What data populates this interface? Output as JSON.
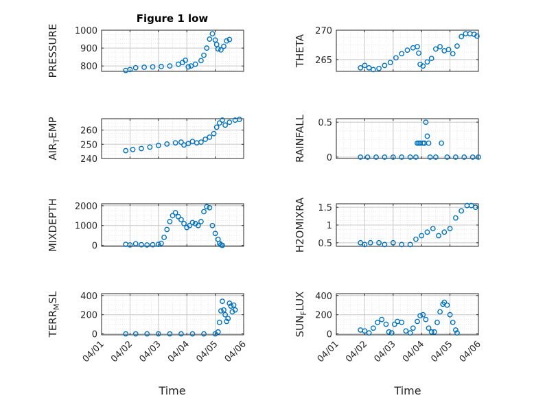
{
  "figure": {
    "title": "Figure 1 low",
    "xlabel": "Time"
  },
  "colors": {
    "marker": "#0072bd",
    "axis": "#262626",
    "grid": "#c8c8c8",
    "minor_grid": "#e2e2e2"
  },
  "chart_data": [
    {
      "id": "pressure",
      "type": "scatter",
      "ylabel": "PRESSURE",
      "ylim": [
        770,
        1000
      ],
      "yticks": [
        800,
        900,
        1000
      ],
      "xlim": [
        1,
        6
      ],
      "xticks": [
        "04/01",
        "04/02",
        "04/03",
        "04/04",
        "04/05",
        "04/06"
      ],
      "xticks_shown": false,
      "points": [
        [
          1.85,
          775
        ],
        [
          2.0,
          780
        ],
        [
          2.2,
          790
        ],
        [
          2.5,
          793
        ],
        [
          2.8,
          795
        ],
        [
          3.1,
          797
        ],
        [
          3.4,
          800
        ],
        [
          3.7,
          810
        ],
        [
          3.85,
          820
        ],
        [
          3.95,
          832
        ],
        [
          4.05,
          795
        ],
        [
          4.15,
          800
        ],
        [
          4.3,
          810
        ],
        [
          4.5,
          830
        ],
        [
          4.6,
          860
        ],
        [
          4.7,
          900
        ],
        [
          4.8,
          950
        ],
        [
          4.9,
          980
        ],
        [
          5.0,
          945
        ],
        [
          5.05,
          920
        ],
        [
          5.1,
          895
        ],
        [
          5.2,
          890
        ],
        [
          5.3,
          910
        ],
        [
          5.4,
          940
        ],
        [
          5.5,
          948
        ]
      ]
    },
    {
      "id": "theta",
      "type": "scatter",
      "ylabel": "THETA",
      "ylim": [
        263,
        270
      ],
      "yticks": [
        265,
        270
      ],
      "xlim": [
        1,
        6
      ],
      "xticks": [
        "04/01",
        "04/02",
        "04/03",
        "04/04",
        "04/05",
        "04/06"
      ],
      "xticks_shown": false,
      "points": [
        [
          1.85,
          263.6
        ],
        [
          2.0,
          264.0
        ],
        [
          2.15,
          263.6
        ],
        [
          2.3,
          263.3
        ],
        [
          2.5,
          263.5
        ],
        [
          2.7,
          264.0
        ],
        [
          2.9,
          264.5
        ],
        [
          3.1,
          265.3
        ],
        [
          3.3,
          266.0
        ],
        [
          3.5,
          266.6
        ],
        [
          3.7,
          267.0
        ],
        [
          3.85,
          267.2
        ],
        [
          3.9,
          266.1
        ],
        [
          3.95,
          264.2
        ],
        [
          4.05,
          263.9
        ],
        [
          4.2,
          264.6
        ],
        [
          4.35,
          265.2
        ],
        [
          4.5,
          266.8
        ],
        [
          4.65,
          267.2
        ],
        [
          4.8,
          266.5
        ],
        [
          4.95,
          266.7
        ],
        [
          5.1,
          266.0
        ],
        [
          5.25,
          267.3
        ],
        [
          5.4,
          268.9
        ],
        [
          5.55,
          269.4
        ],
        [
          5.7,
          269.4
        ],
        [
          5.85,
          269.3
        ],
        [
          5.95,
          269.0
        ]
      ]
    },
    {
      "id": "air_temp",
      "type": "scatter",
      "ylabel": "AIR_TEMP",
      "ylabel_main": "AIR",
      "ylabel_sub": "T",
      "ylabel_rest": "EMP",
      "ylim": [
        240,
        268
      ],
      "yticks": [
        240,
        250,
        260
      ],
      "xlim": [
        1,
        6
      ],
      "xticks": [
        "04/01",
        "04/02",
        "04/03",
        "04/04",
        "04/05",
        "04/06"
      ],
      "xticks_shown": false,
      "points": [
        [
          1.85,
          245.5
        ],
        [
          2.1,
          246.3
        ],
        [
          2.4,
          247.0
        ],
        [
          2.7,
          248.0
        ],
        [
          3.0,
          249.2
        ],
        [
          3.3,
          250.2
        ],
        [
          3.6,
          251.0
        ],
        [
          3.8,
          251.5
        ],
        [
          3.9,
          249.5
        ],
        [
          4.05,
          250.5
        ],
        [
          4.2,
          252.0
        ],
        [
          4.35,
          251.0
        ],
        [
          4.5,
          251.5
        ],
        [
          4.65,
          253.5
        ],
        [
          4.8,
          255.0
        ],
        [
          4.95,
          257.5
        ],
        [
          5.05,
          262.0
        ],
        [
          5.15,
          265.0
        ],
        [
          5.25,
          267.0
        ],
        [
          5.35,
          263.5
        ],
        [
          5.5,
          265.5
        ],
        [
          5.7,
          267.0
        ],
        [
          5.85,
          267.5
        ]
      ]
    },
    {
      "id": "rainfall",
      "type": "scatter",
      "ylabel": "RAINFALL",
      "ylim": [
        -0.02,
        0.55
      ],
      "yticks": [
        0,
        0.5
      ],
      "xlim": [
        1,
        6
      ],
      "xticks": [
        "04/01",
        "04/02",
        "04/03",
        "04/04",
        "04/05",
        "04/06"
      ],
      "xticks_shown": false,
      "points": [
        [
          1.85,
          0
        ],
        [
          2.1,
          0
        ],
        [
          2.4,
          0
        ],
        [
          2.7,
          0
        ],
        [
          3.0,
          0
        ],
        [
          3.3,
          0
        ],
        [
          3.6,
          0
        ],
        [
          3.8,
          0
        ],
        [
          3.85,
          0.2
        ],
        [
          3.9,
          0.2
        ],
        [
          3.95,
          0.2
        ],
        [
          4.05,
          0.2
        ],
        [
          4.1,
          0.2
        ],
        [
          4.15,
          0.5
        ],
        [
          4.2,
          0.3
        ],
        [
          4.25,
          0.2
        ],
        [
          4.3,
          0
        ],
        [
          4.5,
          0
        ],
        [
          4.7,
          0.2
        ],
        [
          4.9,
          0
        ],
        [
          5.2,
          0
        ],
        [
          5.5,
          0
        ],
        [
          5.8,
          0
        ],
        [
          6.0,
          0
        ]
      ]
    },
    {
      "id": "mixdepth",
      "type": "scatter",
      "ylabel": "MIXDEPTH",
      "ylim": [
        -50,
        2100
      ],
      "yticks": [
        0,
        1000,
        2000
      ],
      "xlim": [
        1,
        6
      ],
      "xticks": [
        "04/01",
        "04/02",
        "04/03",
        "04/04",
        "04/05",
        "04/06"
      ],
      "xticks_shown": false,
      "points": [
        [
          1.85,
          50
        ],
        [
          2.0,
          20
        ],
        [
          2.2,
          80
        ],
        [
          2.4,
          30
        ],
        [
          2.6,
          20
        ],
        [
          2.8,
          30
        ],
        [
          3.0,
          50
        ],
        [
          3.1,
          100
        ],
        [
          3.2,
          400
        ],
        [
          3.3,
          800
        ],
        [
          3.4,
          1200
        ],
        [
          3.5,
          1500
        ],
        [
          3.6,
          1650
        ],
        [
          3.7,
          1450
        ],
        [
          3.8,
          1300
        ],
        [
          3.9,
          1100
        ],
        [
          4.0,
          900
        ],
        [
          4.1,
          1000
        ],
        [
          4.2,
          1150
        ],
        [
          4.3,
          1100
        ],
        [
          4.4,
          1000
        ],
        [
          4.5,
          1200
        ],
        [
          4.6,
          1700
        ],
        [
          4.7,
          1950
        ],
        [
          4.8,
          1900
        ],
        [
          4.9,
          1000
        ],
        [
          5.0,
          600
        ],
        [
          5.1,
          300
        ],
        [
          5.15,
          100
        ],
        [
          5.2,
          30
        ],
        [
          5.25,
          0
        ]
      ]
    },
    {
      "id": "h2omixra",
      "type": "scatter",
      "ylabel": "H2OMIXRA",
      "ylim": [
        0.4,
        1.6
      ],
      "yticks": [
        0.5,
        1,
        1.5
      ],
      "xlim": [
        1,
        6
      ],
      "xticks": [
        "04/01",
        "04/02",
        "04/03",
        "04/04",
        "04/05",
        "04/06"
      ],
      "xticks_shown": false,
      "points": [
        [
          1.85,
          0.5
        ],
        [
          2.0,
          0.45
        ],
        [
          2.2,
          0.5
        ],
        [
          2.5,
          0.5
        ],
        [
          2.7,
          0.45
        ],
        [
          3.0,
          0.5
        ],
        [
          3.3,
          0.45
        ],
        [
          3.6,
          0.45
        ],
        [
          3.8,
          0.6
        ],
        [
          4.0,
          0.7
        ],
        [
          4.2,
          0.8
        ],
        [
          4.4,
          0.9
        ],
        [
          4.6,
          0.7
        ],
        [
          4.8,
          0.8
        ],
        [
          5.0,
          0.9
        ],
        [
          5.2,
          1.2
        ],
        [
          5.4,
          1.4
        ],
        [
          5.6,
          1.55
        ],
        [
          5.75,
          1.55
        ],
        [
          5.9,
          1.5
        ]
      ]
    },
    {
      "id": "terr_msl",
      "type": "scatter",
      "ylabel": "TERR_MSL",
      "ylabel_main": "TERR",
      "ylabel_sub": "M",
      "ylabel_rest": "SL",
      "ylim": [
        -10,
        420
      ],
      "yticks": [
        0,
        200,
        400
      ],
      "xlim": [
        1,
        6
      ],
      "xticks": [
        "04/01",
        "04/02",
        "04/03",
        "04/04",
        "04/05",
        "04/06"
      ],
      "xticks_shown": true,
      "points": [
        [
          1.85,
          0
        ],
        [
          2.2,
          0
        ],
        [
          2.6,
          0
        ],
        [
          3.0,
          0
        ],
        [
          3.4,
          0
        ],
        [
          3.8,
          0
        ],
        [
          4.2,
          0
        ],
        [
          4.6,
          0
        ],
        [
          5.0,
          0
        ],
        [
          5.1,
          20
        ],
        [
          5.15,
          120
        ],
        [
          5.2,
          240
        ],
        [
          5.25,
          340
        ],
        [
          5.3,
          250
        ],
        [
          5.35,
          200
        ],
        [
          5.4,
          130
        ],
        [
          5.45,
          160
        ],
        [
          5.5,
          320
        ],
        [
          5.55,
          290
        ],
        [
          5.6,
          230
        ],
        [
          5.65,
          300
        ],
        [
          5.7,
          250
        ]
      ]
    },
    {
      "id": "sun_flux",
      "type": "scatter",
      "ylabel": "SUN_FLUX",
      "ylabel_main": "SUN",
      "ylabel_sub": "F",
      "ylabel_rest": "LUX",
      "ylim": [
        -10,
        420
      ],
      "yticks": [
        0,
        200,
        400
      ],
      "xlim": [
        1,
        6
      ],
      "xticks": [
        "04/01",
        "04/02",
        "04/03",
        "04/04",
        "04/05",
        "04/06"
      ],
      "xticks_shown": true,
      "points": [
        [
          1.85,
          40
        ],
        [
          2.0,
          30
        ],
        [
          2.15,
          10
        ],
        [
          2.3,
          60
        ],
        [
          2.45,
          120
        ],
        [
          2.6,
          150
        ],
        [
          2.75,
          100
        ],
        [
          2.85,
          20
        ],
        [
          2.95,
          10
        ],
        [
          3.05,
          100
        ],
        [
          3.15,
          130
        ],
        [
          3.3,
          120
        ],
        [
          3.45,
          30
        ],
        [
          3.6,
          10
        ],
        [
          3.7,
          60
        ],
        [
          3.85,
          130
        ],
        [
          3.95,
          190
        ],
        [
          4.05,
          200
        ],
        [
          4.15,
          150
        ],
        [
          4.25,
          60
        ],
        [
          4.35,
          20
        ],
        [
          4.45,
          20
        ],
        [
          4.55,
          120
        ],
        [
          4.65,
          230
        ],
        [
          4.75,
          310
        ],
        [
          4.8,
          330
        ],
        [
          4.9,
          300
        ],
        [
          5.0,
          200
        ],
        [
          5.1,
          120
        ],
        [
          5.2,
          40
        ],
        [
          5.25,
          10
        ]
      ]
    }
  ]
}
